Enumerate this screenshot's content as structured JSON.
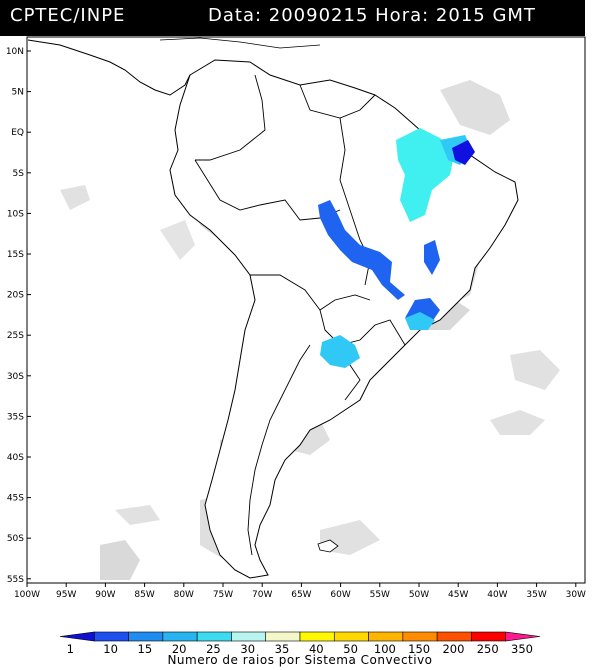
{
  "header": {
    "source": "CPTEC/INPE",
    "date_label": "Data:",
    "date_value": "20090215",
    "time_label": "Hora:",
    "time_value": "2015 GMT"
  },
  "map": {
    "lat_ticks": [
      "10N",
      "5N",
      "EQ",
      "5S",
      "10S",
      "15S",
      "20S",
      "25S",
      "30S",
      "35S",
      "40S",
      "45S",
      "50S",
      "55S"
    ],
    "lon_ticks": [
      "100W",
      "95W",
      "90W",
      "85W",
      "80W",
      "75W",
      "70W",
      "65W",
      "60W",
      "55W",
      "50W",
      "45W",
      "40W",
      "35W",
      "30W"
    ],
    "colors": {
      "ocean": "#ffffff",
      "cloud": "#c8c8c8",
      "coast": "#000000",
      "border": "#000000",
      "storm_dark_blue": "#1010e0",
      "storm_blue": "#1e64f0",
      "storm_light_blue": "#30c8f5",
      "storm_cyan": "#40f0f0"
    }
  },
  "colorbar": {
    "labels": [
      "1",
      "10",
      "15",
      "20",
      "25",
      "30",
      "35",
      "40",
      "50",
      "100",
      "150",
      "200",
      "250",
      "350"
    ],
    "colors": [
      "#1010d0",
      "#1e50f0",
      "#1e8cf0",
      "#28b4f0",
      "#3cdcf0",
      "#b8f4f0",
      "#f4f8c8",
      "#fff800",
      "#ffd800",
      "#ffb400",
      "#ff8c00",
      "#ff5000",
      "#ff0000",
      "#ff1890"
    ],
    "title": "Numero de raios por Sistema Convectivo"
  }
}
